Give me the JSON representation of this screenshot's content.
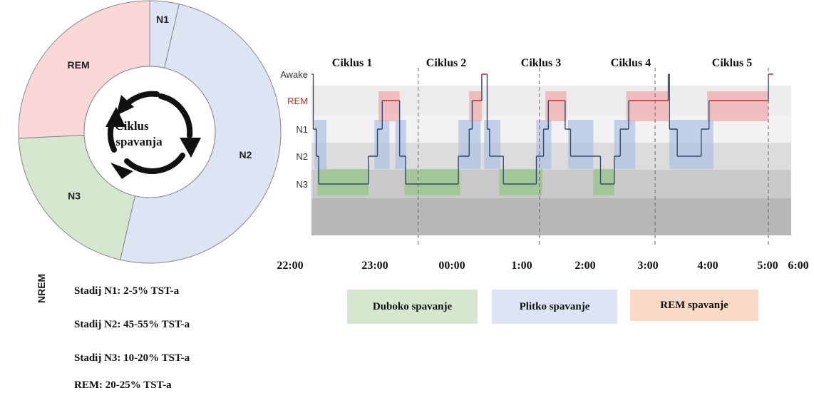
{
  "donut": {
    "center_label_line1": "Ciklus",
    "center_label_line2": "spavanja",
    "segments": [
      {
        "label": "N1",
        "percent": 3.5,
        "color": "#dde4f3"
      },
      {
        "label": "N2",
        "percent": 48.5,
        "color": "#dde4f3"
      },
      {
        "label": "N3",
        "percent": 20,
        "color": "#d5e8cf"
      },
      {
        "label": "REM",
        "percent": 25,
        "color": "#fbd8d8"
      }
    ]
  },
  "stats": {
    "nrem_label": "NREM",
    "items": [
      "Stadij N1: 2-5% TST-a",
      "Stadij N2: 45-55% TST-a",
      "Stadij N3: 10-20% TST-a",
      "REM: 20-25% TST-a"
    ]
  },
  "chart_data": {
    "type": "line",
    "title": "",
    "xlabel": "",
    "ylabel": "",
    "y_categories": [
      "Awake",
      "REM",
      "N1",
      "N2",
      "N3"
    ],
    "x_ticks": [
      "22:00",
      "23:00",
      "00:00",
      "1:00",
      "2:00",
      "3:00",
      "4:00",
      "5:00",
      "6:00"
    ],
    "cycles": [
      "Ciklus 1",
      "Ciklus 2",
      "Ciklus 3",
      "Ciklus 4",
      "Ciklus 5"
    ],
    "hypnogram": [
      {
        "t": 0.0,
        "stage": "Awake"
      },
      {
        "t": 0.03,
        "stage": "N1"
      },
      {
        "t": 0.08,
        "stage": "N2"
      },
      {
        "t": 0.12,
        "stage": "N3"
      },
      {
        "t": 0.95,
        "stage": "N2"
      },
      {
        "t": 1.1,
        "stage": "N1"
      },
      {
        "t": 1.18,
        "stage": "REM"
      },
      {
        "t": 1.47,
        "stage": "N2"
      },
      {
        "t": 1.57,
        "stage": "N3"
      },
      {
        "t": 2.45,
        "stage": "N2"
      },
      {
        "t": 2.63,
        "stage": "N1"
      },
      {
        "t": 2.68,
        "stage": "REM"
      },
      {
        "t": 2.84,
        "stage": "Awake"
      },
      {
        "t": 2.93,
        "stage": "N1"
      },
      {
        "t": 2.97,
        "stage": "N2"
      },
      {
        "t": 3.2,
        "stage": "N3"
      },
      {
        "t": 3.75,
        "stage": "N2"
      },
      {
        "t": 3.87,
        "stage": "N1"
      },
      {
        "t": 3.95,
        "stage": "REM"
      },
      {
        "t": 4.23,
        "stage": "N1"
      },
      {
        "t": 4.32,
        "stage": "N2"
      },
      {
        "t": 4.82,
        "stage": "N3"
      },
      {
        "t": 5.05,
        "stage": "N2"
      },
      {
        "t": 5.15,
        "stage": "N1"
      },
      {
        "t": 5.29,
        "stage": "REM"
      },
      {
        "t": 5.95,
        "stage": "Awake"
      },
      {
        "t": 5.97,
        "stage": "N1"
      },
      {
        "t": 6.1,
        "stage": "N2"
      },
      {
        "t": 6.5,
        "stage": "N1"
      },
      {
        "t": 6.63,
        "stage": "REM"
      },
      {
        "t": 7.62,
        "stage": "Awake"
      },
      {
        "t": 7.7,
        "stage": "Awake"
      }
    ],
    "cycle_bounds": [
      1.78,
      3.8,
      5.73,
      7.62
    ],
    "highlight_boxes": [
      {
        "kind": "light",
        "t0": 0.05,
        "t1": 0.25,
        "stage": "N1-N2"
      },
      {
        "kind": "deep",
        "t0": 0.1,
        "t1": 0.95,
        "stage": "N3"
      },
      {
        "kind": "light",
        "t0": 1.05,
        "t1": 1.3,
        "stage": "N1-N2"
      },
      {
        "kind": "rem",
        "t0": 1.12,
        "t1": 1.47,
        "stage": "REM"
      },
      {
        "kind": "light",
        "t0": 1.4,
        "t1": 1.58,
        "stage": "N1-N2"
      },
      {
        "kind": "deep",
        "t0": 1.55,
        "t1": 2.48,
        "stage": "N3"
      },
      {
        "kind": "light",
        "t0": 2.45,
        "t1": 2.82,
        "stage": "N1-N2"
      },
      {
        "kind": "rem",
        "t0": 2.63,
        "t1": 2.84,
        "stage": "REM"
      },
      {
        "kind": "light",
        "t0": 2.88,
        "t1": 3.15,
        "stage": "N1-N2"
      },
      {
        "kind": "deep",
        "t0": 3.13,
        "t1": 3.85,
        "stage": "N3"
      },
      {
        "kind": "light",
        "t0": 3.75,
        "t1": 4.0,
        "stage": "N1-N2"
      },
      {
        "kind": "rem",
        "t0": 3.9,
        "t1": 4.25,
        "stage": "REM"
      },
      {
        "kind": "light",
        "t0": 4.28,
        "t1": 4.7,
        "stage": "N1-N2"
      },
      {
        "kind": "deep",
        "t0": 4.7,
        "t1": 5.05,
        "stage": "N3"
      },
      {
        "kind": "light",
        "t0": 5.05,
        "t1": 5.4,
        "stage": "N1-N2"
      },
      {
        "kind": "rem",
        "t0": 5.25,
        "t1": 5.95,
        "stage": "REM"
      },
      {
        "kind": "light",
        "t0": 5.97,
        "t1": 6.7,
        "stage": "N1-N2"
      },
      {
        "kind": "rem",
        "t0": 6.6,
        "t1": 7.62,
        "stage": "REM"
      }
    ],
    "colors": {
      "deep": "#8dc47e",
      "light": "#a7bde3",
      "rem": "#f0a3a3",
      "line": "#334a6e",
      "rem_line": "#c0302f"
    }
  },
  "legend": {
    "items": [
      {
        "label": "Duboko spavanje",
        "color": "#d5e8cf"
      },
      {
        "label": "Plitko spavanje",
        "color": "#dde4f3"
      },
      {
        "label": "REM spavanje",
        "color": "#f8d9c6"
      }
    ]
  }
}
